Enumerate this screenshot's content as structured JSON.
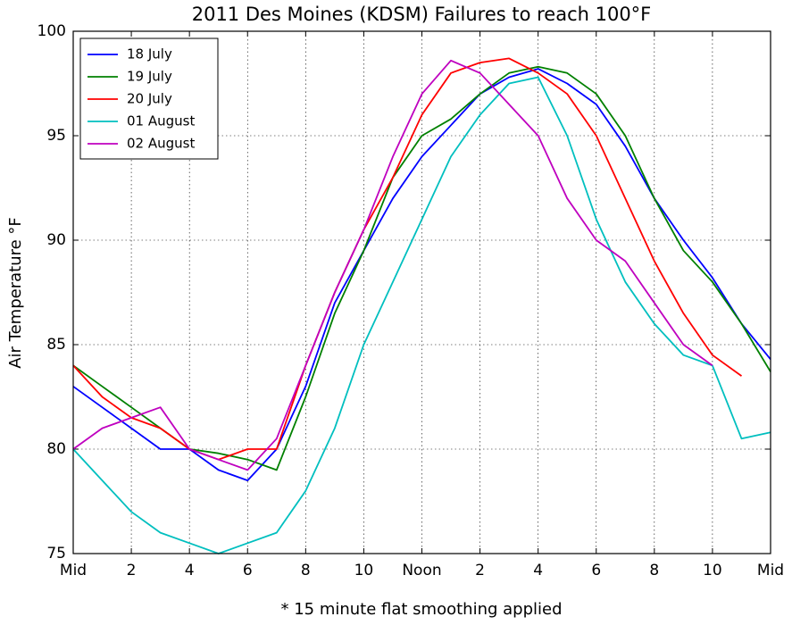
{
  "chart_data": {
    "type": "line",
    "title": "2011 Des Moines (KDSM) Failures to reach 100°F",
    "y_label": "Air Temperature °F",
    "x_label": "* 15 minute flat smoothing applied",
    "x": [
      0,
      1,
      2,
      3,
      4,
      5,
      6,
      7,
      8,
      9,
      10,
      11,
      12,
      13,
      14,
      15,
      16,
      17,
      18,
      19,
      20,
      21,
      22,
      23,
      24
    ],
    "series": [
      {
        "name": "18 July",
        "color": "#0000ff",
        "values": [
          83,
          82,
          81,
          80,
          80,
          79,
          78.5,
          80,
          83,
          87,
          89.5,
          92,
          94,
          95.5,
          97,
          97.8,
          98.2,
          97.5,
          96.5,
          94.5,
          92,
          90,
          88.2,
          86,
          84.3
        ]
      },
      {
        "name": "19 July",
        "color": "#008000",
        "values": [
          84,
          83,
          82,
          81,
          80,
          79.8,
          79.5,
          79,
          82.5,
          86.5,
          89.5,
          93,
          95,
          95.8,
          97,
          98,
          98.3,
          98,
          97,
          95,
          92,
          89.5,
          88,
          86,
          83.7
        ]
      },
      {
        "name": "20 July",
        "color": "#ff0000",
        "values": [
          84,
          82.5,
          81.5,
          81,
          80,
          79.5,
          80,
          80,
          84,
          87.5,
          90.5,
          93,
          96,
          98,
          98.5,
          98.7,
          98,
          97,
          95,
          92,
          89,
          86.5,
          84.5,
          83.5,
          null
        ]
      },
      {
        "name": "01 August",
        "color": "#00bfbf",
        "values": [
          80,
          78.5,
          77,
          76,
          75.5,
          75,
          75.5,
          76,
          78,
          81,
          85,
          88,
          91,
          94,
          96,
          97.5,
          97.8,
          95,
          91,
          88,
          86,
          84.5,
          84,
          80.5,
          80.8
        ]
      },
      {
        "name": "02 August",
        "color": "#bf00bf",
        "values": [
          80,
          81,
          81.5,
          82,
          80,
          79.5,
          79,
          80.5,
          84,
          87.5,
          90.5,
          94,
          97,
          98.6,
          98,
          96.5,
          95,
          92,
          90,
          89,
          87,
          85,
          84,
          null,
          null
        ]
      }
    ],
    "xlim": [
      0,
      24
    ],
    "xticks": [
      {
        "value": 0,
        "label": "Mid"
      },
      2,
      4,
      6,
      8,
      10,
      {
        "value": 12,
        "label": "Noon"
      },
      2,
      4,
      6,
      8,
      10,
      {
        "value": 24,
        "label": "Mid"
      }
    ],
    "ylim": [
      75,
      100
    ],
    "yticks": [
      75,
      80,
      85,
      90,
      95,
      100
    ],
    "grid": true,
    "legend": "upper left"
  }
}
